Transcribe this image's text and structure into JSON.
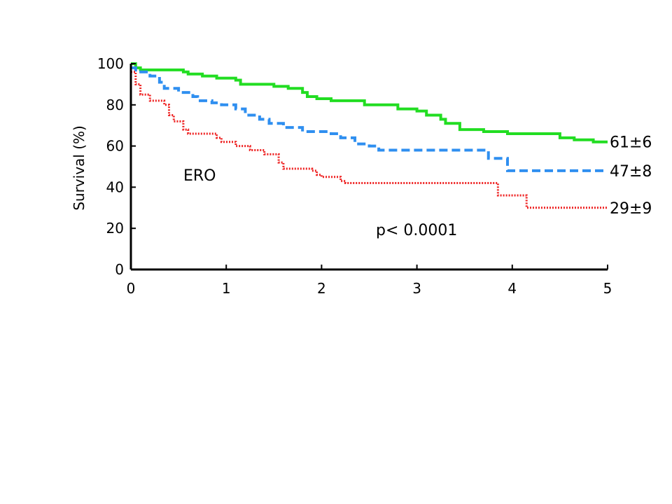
{
  "chart_data": {
    "type": "line",
    "title": "",
    "xlabel": "",
    "ylabel": "Survival (%)",
    "xlim": [
      0,
      5
    ],
    "ylim": [
      0,
      100
    ],
    "x_ticks": [
      "0",
      "1",
      "2",
      "3",
      "4",
      "5"
    ],
    "y_ticks": [
      "0",
      "20",
      "40",
      "60",
      "80",
      "100"
    ],
    "grid": false,
    "annotations": {
      "group_label": "ERO",
      "p_value": "p< 0.0001"
    },
    "series": [
      {
        "end_label": "61±6",
        "color": "#22dd22",
        "style": "solid",
        "points": [
          [
            0,
            100
          ],
          [
            0.05,
            98
          ],
          [
            0.1,
            97
          ],
          [
            0.55,
            96
          ],
          [
            0.6,
            95
          ],
          [
            0.75,
            94
          ],
          [
            0.9,
            93
          ],
          [
            1.1,
            92
          ],
          [
            1.15,
            90
          ],
          [
            1.5,
            89
          ],
          [
            1.65,
            88
          ],
          [
            1.8,
            86
          ],
          [
            1.85,
            84
          ],
          [
            1.95,
            83
          ],
          [
            2.1,
            82
          ],
          [
            2.45,
            80
          ],
          [
            2.8,
            78
          ],
          [
            3.0,
            77
          ],
          [
            3.1,
            75
          ],
          [
            3.25,
            73
          ],
          [
            3.3,
            71
          ],
          [
            3.45,
            68
          ],
          [
            3.7,
            67
          ],
          [
            3.95,
            66
          ],
          [
            4.5,
            64
          ],
          [
            4.65,
            63
          ],
          [
            4.85,
            62
          ],
          [
            5,
            62
          ]
        ]
      },
      {
        "end_label": "47±8",
        "color": "#2f8ff0",
        "style": "dashed",
        "points": [
          [
            0,
            98
          ],
          [
            0.05,
            96
          ],
          [
            0.2,
            94
          ],
          [
            0.3,
            91
          ],
          [
            0.35,
            88
          ],
          [
            0.5,
            86
          ],
          [
            0.65,
            84
          ],
          [
            0.7,
            82
          ],
          [
            0.85,
            81
          ],
          [
            0.95,
            80
          ],
          [
            1.1,
            78
          ],
          [
            1.2,
            75
          ],
          [
            1.35,
            73
          ],
          [
            1.45,
            71
          ],
          [
            1.6,
            69
          ],
          [
            1.8,
            67
          ],
          [
            2.1,
            66
          ],
          [
            2.2,
            64
          ],
          [
            2.35,
            61
          ],
          [
            2.5,
            60
          ],
          [
            2.6,
            58
          ],
          [
            3.7,
            58
          ],
          [
            3.75,
            54
          ],
          [
            3.9,
            54
          ],
          [
            3.95,
            48
          ],
          [
            5,
            48
          ]
        ]
      },
      {
        "end_label": "29±9",
        "color": "#ee2222",
        "style": "dotted",
        "points": [
          [
            0,
            96
          ],
          [
            0.05,
            90
          ],
          [
            0.1,
            85
          ],
          [
            0.2,
            82
          ],
          [
            0.35,
            80
          ],
          [
            0.4,
            75
          ],
          [
            0.45,
            72
          ],
          [
            0.55,
            68
          ],
          [
            0.6,
            66
          ],
          [
            0.9,
            64
          ],
          [
            0.95,
            62
          ],
          [
            1.1,
            60
          ],
          [
            1.25,
            58
          ],
          [
            1.4,
            56
          ],
          [
            1.55,
            52
          ],
          [
            1.6,
            49
          ],
          [
            1.9,
            48
          ],
          [
            1.95,
            46
          ],
          [
            2.0,
            45
          ],
          [
            2.2,
            43
          ],
          [
            2.25,
            42
          ],
          [
            3.8,
            42
          ],
          [
            3.85,
            36
          ],
          [
            4.1,
            36
          ],
          [
            4.15,
            30
          ],
          [
            5,
            30
          ]
        ]
      }
    ]
  }
}
